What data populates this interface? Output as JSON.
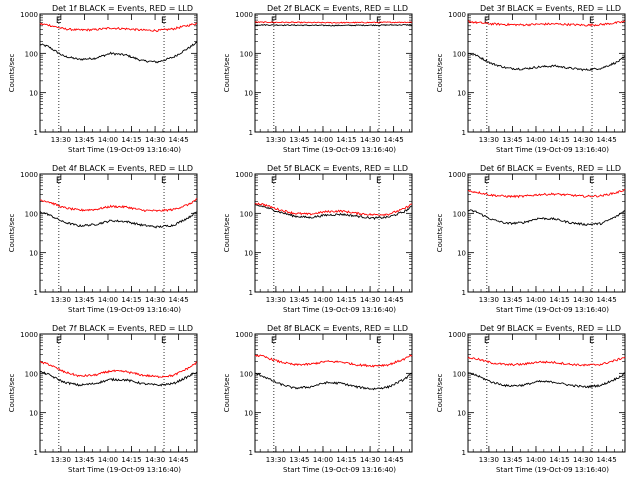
{
  "chart_data": [
    {
      "type": "line",
      "title": "Det 1f BLACK = Events, RED = LLD",
      "xlabel": "Start Time (19-Oct-09 13:16:40)",
      "ylabel": "Counts/sec",
      "xlim_minutes": [
        0,
        100
      ],
      "ylim": [
        1,
        1000
      ],
      "yscale": "log",
      "yticks": [
        "1",
        "10",
        "100",
        "1000"
      ],
      "x_tick_labels": [
        {
          "t": 13.3,
          "label": "13:30"
        },
        {
          "t": 28.3,
          "label": "13:45"
        },
        {
          "t": 43.3,
          "label": "14:00"
        },
        {
          "t": 58.3,
          "label": "14:15"
        },
        {
          "t": 73.3,
          "label": "14:30"
        },
        {
          "t": 88.3,
          "label": "14:45"
        }
      ],
      "marker_lines": [
        {
          "t": 12,
          "label": "E"
        },
        {
          "t": 79,
          "label": "E"
        }
      ],
      "series": [
        {
          "key": "Events",
          "color": "#000000",
          "t": [
            0,
            5,
            15,
            25,
            35,
            45,
            55,
            65,
            75,
            85,
            95,
            100
          ],
          "values": [
            170,
            150,
            85,
            70,
            75,
            100,
            90,
            65,
            60,
            80,
            140,
            190
          ]
        },
        {
          "key": "LLD",
          "color": "#ff0000",
          "t": [
            0,
            5,
            15,
            25,
            35,
            45,
            55,
            65,
            75,
            85,
            95,
            100
          ],
          "values": [
            560,
            530,
            420,
            390,
            400,
            440,
            420,
            390,
            380,
            420,
            520,
            580
          ]
        }
      ]
    },
    {
      "type": "line",
      "title": "Det 2f BLACK = Events, RED = LLD",
      "xlabel": "Start Time (19-Oct-09 13:16:40)",
      "ylabel": "Counts/sec",
      "xlim_minutes": [
        0,
        100
      ],
      "ylim": [
        1,
        1000
      ],
      "yscale": "log",
      "yticks": [
        "1",
        "10",
        "100",
        "1000"
      ],
      "x_tick_labels": [
        {
          "t": 13.3,
          "label": "13:30"
        },
        {
          "t": 28.3,
          "label": "13:45"
        },
        {
          "t": 43.3,
          "label": "14:00"
        },
        {
          "t": 58.3,
          "label": "14:15"
        },
        {
          "t": 73.3,
          "label": "14:30"
        },
        {
          "t": 88.3,
          "label": "14:45"
        }
      ],
      "marker_lines": [
        {
          "t": 12,
          "label": "E"
        },
        {
          "t": 79,
          "label": "E"
        }
      ],
      "series": [
        {
          "key": "Events",
          "color": "#000000",
          "t": [
            0,
            25,
            50,
            75,
            100
          ],
          "values": [
            530,
            520,
            510,
            520,
            530
          ]
        },
        {
          "key": "LLD",
          "color": "#ff0000",
          "t": [
            0,
            25,
            50,
            75,
            100
          ],
          "values": [
            620,
            610,
            600,
            610,
            620
          ]
        }
      ]
    },
    {
      "type": "line",
      "title": "Det 3f BLACK = Events, RED = LLD",
      "xlabel": "Start Time (19-Oct-09 13:16:40)",
      "ylabel": "Counts/sec",
      "xlim_minutes": [
        0,
        100
      ],
      "ylim": [
        1,
        1000
      ],
      "yscale": "log",
      "yticks": [
        "1",
        "10",
        "100",
        "1000"
      ],
      "x_tick_labels": [
        {
          "t": 13.3,
          "label": "13:30"
        },
        {
          "t": 28.3,
          "label": "13:45"
        },
        {
          "t": 43.3,
          "label": "14:00"
        },
        {
          "t": 58.3,
          "label": "14:15"
        },
        {
          "t": 73.3,
          "label": "14:30"
        },
        {
          "t": 88.3,
          "label": "14:45"
        }
      ],
      "marker_lines": [
        {
          "t": 12,
          "label": "E"
        },
        {
          "t": 79,
          "label": "E"
        }
      ],
      "series": [
        {
          "key": "Events",
          "color": "#000000",
          "t": [
            0,
            5,
            15,
            25,
            35,
            45,
            55,
            65,
            75,
            85,
            95,
            100
          ],
          "values": [
            100,
            90,
            55,
            42,
            40,
            45,
            48,
            42,
            38,
            42,
            60,
            80
          ]
        },
        {
          "key": "LLD",
          "color": "#ff0000",
          "t": [
            0,
            5,
            15,
            25,
            35,
            45,
            55,
            65,
            75,
            85,
            95,
            100
          ],
          "values": [
            650,
            610,
            560,
            540,
            530,
            550,
            560,
            540,
            520,
            540,
            600,
            640
          ]
        }
      ]
    },
    {
      "type": "line",
      "title": "Det 4f BLACK = Events, RED = LLD",
      "xlabel": "Start Time (19-Oct-09 13:16:40)",
      "ylabel": "Counts/sec",
      "xlim_minutes": [
        0,
        100
      ],
      "ylim": [
        1,
        1000
      ],
      "yscale": "log",
      "yticks": [
        "1",
        "10",
        "100",
        "1000"
      ],
      "x_tick_labels": [
        {
          "t": 13.3,
          "label": "13:30"
        },
        {
          "t": 28.3,
          "label": "13:45"
        },
        {
          "t": 43.3,
          "label": "14:00"
        },
        {
          "t": 58.3,
          "label": "14:15"
        },
        {
          "t": 73.3,
          "label": "14:30"
        },
        {
          "t": 88.3,
          "label": "14:45"
        }
      ],
      "marker_lines": [
        {
          "t": 12,
          "label": "E"
        },
        {
          "t": 79,
          "label": "E"
        }
      ],
      "series": [
        {
          "key": "Events",
          "color": "#000000",
          "t": [
            0,
            5,
            15,
            25,
            35,
            45,
            55,
            65,
            75,
            85,
            95,
            100
          ],
          "values": [
            110,
            95,
            60,
            48,
            52,
            65,
            62,
            50,
            45,
            50,
            80,
            110
          ]
        },
        {
          "key": "LLD",
          "color": "#ff0000",
          "t": [
            0,
            5,
            15,
            25,
            35,
            45,
            55,
            65,
            75,
            85,
            95,
            100
          ],
          "values": [
            220,
            200,
            140,
            120,
            125,
            150,
            145,
            120,
            115,
            125,
            170,
            230
          ]
        }
      ]
    },
    {
      "type": "line",
      "title": "Det 5f BLACK = Events, RED = LLD",
      "xlabel": "Start Time (19-Oct-09 13:16:40)",
      "ylabel": "Counts/sec",
      "xlim_minutes": [
        0,
        100
      ],
      "ylim": [
        1,
        1000
      ],
      "yscale": "log",
      "yticks": [
        "1",
        "10",
        "100",
        "1000"
      ],
      "x_tick_labels": [
        {
          "t": 13.3,
          "label": "13:30"
        },
        {
          "t": 28.3,
          "label": "13:45"
        },
        {
          "t": 43.3,
          "label": "14:00"
        },
        {
          "t": 58.3,
          "label": "14:15"
        },
        {
          "t": 73.3,
          "label": "14:30"
        },
        {
          "t": 88.3,
          "label": "14:45"
        }
      ],
      "marker_lines": [
        {
          "t": 12,
          "label": "E"
        },
        {
          "t": 79,
          "label": "E"
        }
      ],
      "series": [
        {
          "key": "Events",
          "color": "#000000",
          "t": [
            0,
            5,
            15,
            25,
            35,
            45,
            55,
            65,
            75,
            85,
            95,
            100
          ],
          "values": [
            160,
            150,
            110,
            85,
            78,
            90,
            95,
            85,
            75,
            80,
            110,
            150
          ]
        },
        {
          "key": "LLD",
          "color": "#ff0000",
          "t": [
            0,
            5,
            15,
            25,
            35,
            45,
            55,
            65,
            75,
            85,
            95,
            100
          ],
          "values": [
            180,
            170,
            125,
            100,
            95,
            110,
            115,
            100,
            92,
            95,
            130,
            175
          ]
        }
      ]
    },
    {
      "type": "line",
      "title": "Det 6f BLACK = Events, RED = LLD",
      "xlabel": "Start Time (19-Oct-09 13:16:40)",
      "ylabel": "Counts/sec",
      "xlim_minutes": [
        0,
        100
      ],
      "ylim": [
        1,
        1000
      ],
      "yscale": "log",
      "yticks": [
        "1",
        "10",
        "100",
        "1000"
      ],
      "x_tick_labels": [
        {
          "t": 13.3,
          "label": "13:30"
        },
        {
          "t": 28.3,
          "label": "13:45"
        },
        {
          "t": 43.3,
          "label": "14:00"
        },
        {
          "t": 58.3,
          "label": "14:15"
        },
        {
          "t": 73.3,
          "label": "14:30"
        },
        {
          "t": 88.3,
          "label": "14:45"
        }
      ],
      "marker_lines": [
        {
          "t": 12,
          "label": "E"
        },
        {
          "t": 79,
          "label": "E"
        }
      ],
      "series": [
        {
          "key": "Events",
          "color": "#000000",
          "t": [
            0,
            5,
            15,
            25,
            35,
            45,
            55,
            65,
            75,
            85,
            95,
            100
          ],
          "values": [
            120,
            110,
            70,
            55,
            58,
            75,
            72,
            58,
            52,
            55,
            85,
            120
          ]
        },
        {
          "key": "LLD",
          "color": "#ff0000",
          "t": [
            0,
            5,
            15,
            25,
            35,
            45,
            55,
            65,
            75,
            85,
            95,
            100
          ],
          "values": [
            370,
            350,
            290,
            270,
            270,
            300,
            310,
            290,
            270,
            280,
            340,
            400
          ]
        }
      ]
    },
    {
      "type": "line",
      "title": "Det 7f BLACK = Events, RED = LLD",
      "xlabel": "Start Time (19-Oct-09 13:16:40)",
      "ylabel": "Counts/sec",
      "xlim_minutes": [
        0,
        100
      ],
      "ylim": [
        1,
        1000
      ],
      "yscale": "log",
      "yticks": [
        "1",
        "10",
        "100",
        "1000"
      ],
      "x_tick_labels": [
        {
          "t": 13.3,
          "label": "13:30"
        },
        {
          "t": 28.3,
          "label": "13:45"
        },
        {
          "t": 43.3,
          "label": "14:00"
        },
        {
          "t": 58.3,
          "label": "14:15"
        },
        {
          "t": 73.3,
          "label": "14:30"
        },
        {
          "t": 88.3,
          "label": "14:45"
        }
      ],
      "marker_lines": [
        {
          "t": 12,
          "label": "E"
        },
        {
          "t": 79,
          "label": "E"
        }
      ],
      "series": [
        {
          "key": "Events",
          "color": "#000000",
          "t": [
            0,
            5,
            15,
            25,
            35,
            45,
            55,
            65,
            75,
            85,
            95,
            100
          ],
          "values": [
            110,
            95,
            60,
            50,
            55,
            70,
            68,
            55,
            50,
            55,
            85,
            110
          ]
        },
        {
          "key": "LLD",
          "color": "#ff0000",
          "t": [
            0,
            5,
            15,
            25,
            35,
            45,
            55,
            65,
            75,
            85,
            95,
            100
          ],
          "values": [
            190,
            175,
            110,
            85,
            90,
            115,
            110,
            90,
            82,
            88,
            140,
            190
          ]
        }
      ]
    },
    {
      "type": "line",
      "title": "Det 8f BLACK = Events, RED = LLD",
      "xlabel": "Start Time (19-Oct-09 13:16:40)",
      "ylabel": "Counts/sec",
      "xlim_minutes": [
        0,
        100
      ],
      "ylim": [
        1,
        1000
      ],
      "yscale": "log",
      "yticks": [
        "1",
        "10",
        "100",
        "1000"
      ],
      "x_tick_labels": [
        {
          "t": 13.3,
          "label": "13:30"
        },
        {
          "t": 28.3,
          "label": "13:45"
        },
        {
          "t": 43.3,
          "label": "14:00"
        },
        {
          "t": 58.3,
          "label": "14:15"
        },
        {
          "t": 73.3,
          "label": "14:30"
        },
        {
          "t": 88.3,
          "label": "14:45"
        }
      ],
      "marker_lines": [
        {
          "t": 12,
          "label": "E"
        },
        {
          "t": 79,
          "label": "E"
        }
      ],
      "series": [
        {
          "key": "Events",
          "color": "#000000",
          "t": [
            0,
            5,
            15,
            25,
            35,
            45,
            55,
            65,
            75,
            85,
            95,
            100
          ],
          "values": [
            100,
            85,
            55,
            42,
            45,
            58,
            56,
            45,
            40,
            45,
            70,
            100
          ]
        },
        {
          "key": "LLD",
          "color": "#ff0000",
          "t": [
            0,
            5,
            15,
            25,
            35,
            45,
            55,
            65,
            75,
            85,
            95,
            100
          ],
          "values": [
            290,
            270,
            200,
            165,
            170,
            200,
            195,
            165,
            155,
            165,
            230,
            290
          ]
        }
      ]
    },
    {
      "type": "line",
      "title": "Det 9f BLACK = Events, RED = LLD",
      "xlabel": "Start Time (19-Oct-09 13:16:40)",
      "ylabel": "Counts/sec",
      "xlim_minutes": [
        0,
        100
      ],
      "ylim": [
        1,
        1000
      ],
      "yscale": "log",
      "yticks": [
        "1",
        "10",
        "100",
        "1000"
      ],
      "x_tick_labels": [
        {
          "t": 13.3,
          "label": "13:30"
        },
        {
          "t": 28.3,
          "label": "13:45"
        },
        {
          "t": 43.3,
          "label": "14:00"
        },
        {
          "t": 58.3,
          "label": "14:15"
        },
        {
          "t": 73.3,
          "label": "14:30"
        },
        {
          "t": 88.3,
          "label": "14:45"
        }
      ],
      "marker_lines": [
        {
          "t": 12,
          "label": "E"
        },
        {
          "t": 79,
          "label": "E"
        }
      ],
      "series": [
        {
          "key": "Events",
          "color": "#000000",
          "t": [
            0,
            5,
            15,
            25,
            35,
            45,
            55,
            65,
            75,
            85,
            95,
            100
          ],
          "values": [
            100,
            90,
            60,
            48,
            50,
            62,
            60,
            50,
            45,
            50,
            75,
            100
          ]
        },
        {
          "key": "LLD",
          "color": "#ff0000",
          "t": [
            0,
            5,
            15,
            25,
            35,
            45,
            55,
            65,
            75,
            85,
            95,
            100
          ],
          "values": [
            250,
            235,
            185,
            165,
            170,
            195,
            190,
            170,
            160,
            170,
            220,
            260
          ]
        }
      ]
    }
  ]
}
